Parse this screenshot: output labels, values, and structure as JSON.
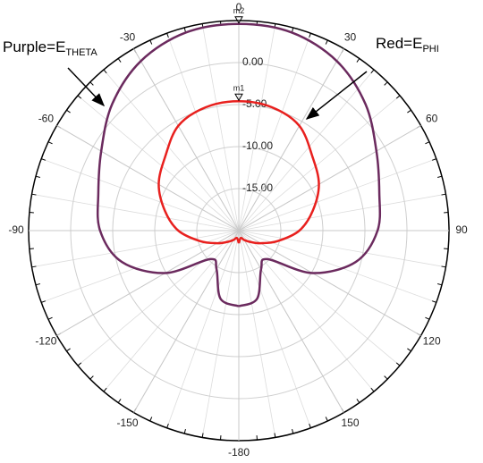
{
  "chart_data": {
    "type": "polar",
    "theta": [
      -180,
      -165,
      -150,
      -135,
      -120,
      -105,
      -90,
      -75,
      -60,
      -45,
      -30,
      -15,
      0,
      15,
      30,
      45,
      60,
      75,
      90,
      105,
      120,
      135,
      150,
      165,
      180
    ],
    "series": [
      {
        "color": "#6b2a5e",
        "marker": "m2",
        "values": [
          -11.0,
          -11.6,
          -14.7,
          -15.2,
          -9.9,
          -5.6,
          -3.5,
          -2.7,
          -1.1,
          1.3,
          3.3,
          4.4,
          4.6,
          4.4,
          3.3,
          1.3,
          -1.1,
          -2.7,
          -3.5,
          -5.6,
          -9.9,
          -15.2,
          -14.7,
          -11.6,
          -11.0
        ]
      },
      {
        "color": "#e8201e",
        "marker": "m1",
        "values": [
          -18.5,
          -19.1,
          -18.7,
          -18.1,
          -17.0,
          -15.2,
          -12.8,
          -10.9,
          -9.0,
          -7.6,
          -5.6,
          -4.8,
          -4.6,
          -4.8,
          -5.6,
          -7.6,
          -9.0,
          -10.9,
          -12.8,
          -15.2,
          -17.0,
          -18.1,
          -18.7,
          -19.1,
          -18.5
        ]
      }
    ],
    "rlim": [
      -20,
      5
    ],
    "rticks": [
      {
        "value": -15,
        "label": "-15.00"
      },
      {
        "value": -10,
        "label": "-10.00"
      },
      {
        "value": -5,
        "label": "-5.00"
      },
      {
        "value": 0,
        "label": "0.00"
      }
    ],
    "thetaticks": [
      0,
      30,
      60,
      90,
      120,
      150,
      -180,
      -150,
      -120,
      -90,
      -60,
      -30
    ],
    "annotations": [
      {
        "text": "Purple=E",
        "sub": "THETA"
      },
      {
        "text": "Red=E",
        "sub": "PHI"
      }
    ]
  }
}
